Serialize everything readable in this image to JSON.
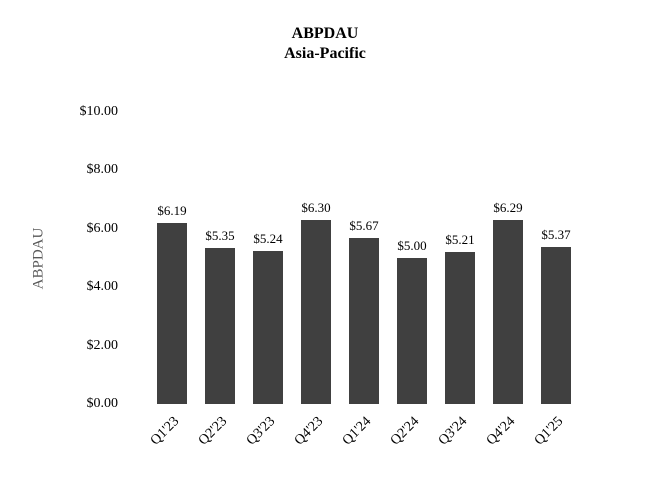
{
  "chart_data": {
    "type": "bar",
    "title": "ABPDAU",
    "subtitle": "Asia-Pacific",
    "ylabel": "ABPDAU",
    "xlabel": "",
    "categories": [
      "Q1'23",
      "Q2'23",
      "Q3'23",
      "Q4'23",
      "Q1'24",
      "Q2'24",
      "Q3'24",
      "Q4'24",
      "Q1'25"
    ],
    "values": [
      6.19,
      5.35,
      5.24,
      6.3,
      5.67,
      5.0,
      5.21,
      6.29,
      5.37
    ],
    "value_labels": [
      "$6.19",
      "$5.35",
      "$5.24",
      "$6.30",
      "$5.67",
      "$5.00",
      "$5.21",
      "$6.29",
      "$5.37"
    ],
    "ylim": [
      0,
      10
    ],
    "ytick_step": 2,
    "ytick_labels": [
      "$0.00",
      "$2.00",
      "$4.00",
      "$6.00",
      "$8.00",
      "$10.00"
    ],
    "grid": false,
    "legend": "none",
    "bar_color": "#404040",
    "axis_label_color": "#595959"
  }
}
